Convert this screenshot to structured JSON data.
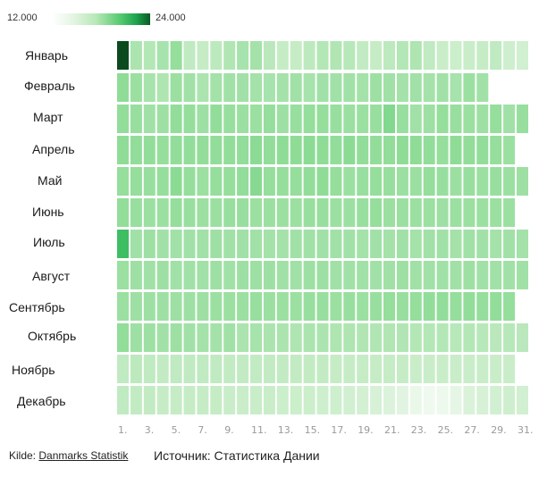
{
  "legend": {
    "min_label": "12.000",
    "max_label": "24.000"
  },
  "footer": {
    "source_prefix": "Kilde:",
    "source_link": "Danmarks Statistik",
    "source_ru": "Источник: Статистика Дании"
  },
  "colors": {
    "low": "#ffffff",
    "mid": "#8fdc97",
    "high": "#0b5a25",
    "grid_gap": "#ffffff"
  },
  "chart_data": {
    "type": "heatmap",
    "title": "",
    "x_label": "",
    "y_label": "",
    "color_range": [
      12000,
      24000
    ],
    "x_tick_labels": [
      "1.",
      "3.",
      "5.",
      "7.",
      "9.",
      "11.",
      "13.",
      "15.",
      "17.",
      "19.",
      "21.",
      "23.",
      "25.",
      "27.",
      "29.",
      "31."
    ],
    "months": [
      {
        "name": "Январь",
        "values": [
          24000,
          16500,
          16200,
          16600,
          17200,
          15800,
          15600,
          15900,
          16300,
          16600,
          16700,
          16000,
          15600,
          15600,
          15900,
          16200,
          16300,
          16100,
          15700,
          15600,
          15900,
          16200,
          16400,
          15800,
          15500,
          15400,
          15500,
          15600,
          15800,
          15300,
          15200
        ]
      },
      {
        "name": "Февраль",
        "values": [
          17400,
          17000,
          16600,
          16400,
          17000,
          16800,
          16500,
          16700,
          16800,
          16800,
          16700,
          16600,
          16700,
          16800,
          16600,
          16800,
          16800,
          16800,
          16700,
          16900,
          16800,
          16700,
          16800,
          16700,
          16800,
          16600,
          17000,
          16800
        ]
      },
      {
        "name": "Март",
        "values": [
          17300,
          17100,
          16800,
          16900,
          17300,
          17200,
          16900,
          17300,
          17100,
          17000,
          17000,
          17200,
          16900,
          17100,
          17200,
          17200,
          17100,
          17000,
          17000,
          17100,
          17700,
          17100,
          16800,
          16900,
          17200,
          17100,
          17000,
          16900,
          17200,
          16800,
          17100
        ]
      },
      {
        "name": "Апрель",
        "values": [
          17400,
          17300,
          17300,
          17200,
          17300,
          17300,
          17300,
          17300,
          17300,
          17300,
          17500,
          17300,
          17400,
          17400,
          17500,
          17400,
          17300,
          17500,
          17300,
          17300,
          17300,
          17400,
          17400,
          17300,
          17200,
          17400,
          17300,
          17300,
          17200,
          17000
        ]
      },
      {
        "name": "Май",
        "values": [
          17200,
          17200,
          17100,
          17200,
          17500,
          17200,
          17000,
          17200,
          17200,
          17300,
          17600,
          17200,
          17200,
          17200,
          17300,
          17400,
          17200,
          17000,
          17100,
          17200,
          17100,
          17000,
          17000,
          17200,
          17100,
          17000,
          17100,
          17000,
          17100,
          17000,
          16900
        ]
      },
      {
        "name": "Июнь",
        "values": [
          17300,
          17100,
          17000,
          17000,
          17200,
          17100,
          17000,
          17000,
          17100,
          17100,
          17000,
          17000,
          17000,
          17000,
          17100,
          17100,
          17000,
          17000,
          17100,
          17200,
          17000,
          17000,
          17000,
          17000,
          16900,
          17000,
          17000,
          17000,
          17000,
          17000
        ]
      },
      {
        "name": "Июль",
        "values": [
          19500,
          16800,
          16900,
          16800,
          16800,
          16800,
          16800,
          16900,
          16800,
          16800,
          16800,
          16700,
          16700,
          16800,
          16800,
          16800,
          16800,
          16800,
          16700,
          16800,
          16700,
          16800,
          16700,
          16800,
          16800,
          16700,
          16800,
          16800,
          16700,
          16800,
          16700
        ]
      },
      {
        "name": "Август",
        "values": [
          17000,
          16900,
          16800,
          16900,
          16800,
          16800,
          16800,
          16900,
          16800,
          16900,
          16900,
          16900,
          16800,
          16800,
          16900,
          16900,
          16800,
          16800,
          16800,
          16800,
          16800,
          16900,
          16800,
          16800,
          16800,
          16800,
          16900,
          16800,
          16800,
          16800,
          16800
        ]
      },
      {
        "name": "Сентябрь",
        "values": [
          17000,
          16900,
          16900,
          16900,
          16900,
          16900,
          16900,
          17000,
          17000,
          17000,
          17100,
          17000,
          17000,
          17000,
          17100,
          17100,
          17000,
          17100,
          17000,
          17100,
          17200,
          17100,
          17200,
          17300,
          17300,
          17200,
          17300,
          17200,
          17300,
          17200
        ]
      },
      {
        "name": "Октябрь",
        "values": [
          17300,
          16900,
          16900,
          16800,
          16900,
          16800,
          16700,
          16700,
          16800,
          16500,
          16600,
          16500,
          16500,
          16400,
          16500,
          16500,
          16400,
          16400,
          16300,
          16300,
          16300,
          16300,
          16200,
          16200,
          16200,
          16100,
          16200,
          16100,
          16000,
          16100,
          16000
        ]
      },
      {
        "name": "Ноябрь",
        "values": [
          15800,
          15900,
          15800,
          15700,
          15800,
          15800,
          15800,
          15800,
          15700,
          15700,
          15700,
          15700,
          15700,
          15700,
          15700,
          15700,
          15600,
          15600,
          15600,
          15600,
          15600,
          15600,
          15500,
          15500,
          15500,
          15500,
          15500,
          15500,
          15500,
          15500
        ]
      },
      {
        "name": "Декабрь",
        "values": [
          15800,
          15700,
          15700,
          15600,
          15600,
          15600,
          15600,
          15600,
          15500,
          15500,
          15500,
          15500,
          15400,
          15400,
          15400,
          15300,
          15300,
          15200,
          15100,
          15000,
          14800,
          14600,
          14000,
          13500,
          13700,
          14400,
          14900,
          15000,
          15200,
          15300,
          15200
        ]
      }
    ]
  }
}
